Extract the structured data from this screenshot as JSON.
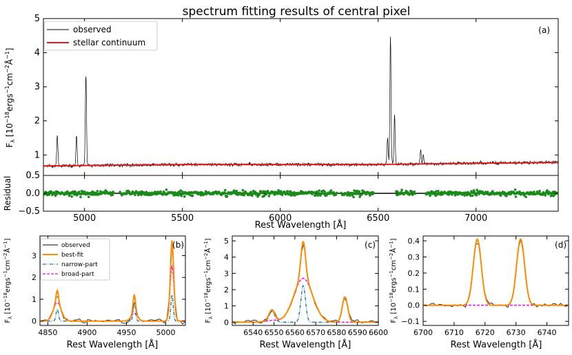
{
  "figure": {
    "title": "spectrum fitting results of central pixel",
    "x_label": "Rest Wavelength [Å]",
    "flux_label": "F",
    "flux_label_sub": "λ",
    "flux_units_a": " [10",
    "flux_units_b": "ergs",
    "flux_units_c": "cm",
    "flux_units_d": "Å",
    "flux_units_e": "]",
    "exp_m18": "−18",
    "exp_m1": "−1",
    "exp_m2": "−2",
    "residual_label": "Residual"
  },
  "colors": {
    "observed": "#000000",
    "continuum": "#e41a1c",
    "residual_points": "#1a8a1a",
    "best_fit": "#ff8c00",
    "narrow": "#1f77b4",
    "broad": "#ff00ff"
  },
  "chart_data": [
    {
      "id": "a",
      "type": "line",
      "panel_label": "(a)",
      "xlim": [
        4790,
        7420
      ],
      "ylim": [
        0.4,
        5.0
      ],
      "x_ticks": [
        5000,
        5500,
        6000,
        6500,
        7000
      ],
      "y_ticks": [
        1,
        2,
        3,
        4,
        5
      ],
      "y_tick_labels": [
        "1",
        "2",
        "3",
        "4",
        "5"
      ],
      "legend": {
        "position": "top-left",
        "entries": [
          "observed",
          "stellar continuum"
        ]
      },
      "continuum": {
        "x": [
          4790,
          5500,
          6000,
          6500,
          7000,
          7420
        ],
        "y": [
          0.68,
          0.72,
          0.72,
          0.72,
          0.76,
          0.78
        ]
      },
      "emission_lines": [
        {
          "x": 4861,
          "peak": 1.55
        },
        {
          "x": 4959,
          "peak": 1.55
        },
        {
          "x": 5007,
          "peak": 3.4
        },
        {
          "x": 6548,
          "peak": 1.5
        },
        {
          "x": 6563,
          "peak": 4.5
        },
        {
          "x": 6584,
          "peak": 2.15
        },
        {
          "x": 6717,
          "peak": 1.15
        },
        {
          "x": 6731,
          "peak": 1.0
        }
      ]
    },
    {
      "id": "residual",
      "type": "scatter",
      "xlim": [
        4790,
        7420
      ],
      "ylim": [
        -0.5,
        0.5
      ],
      "y_ticks": [
        -0.5,
        0.0,
        0.5
      ],
      "y_tick_labels": [
        "−0.5",
        "0.0",
        "0.5"
      ],
      "x_ticks": [
        5000,
        5500,
        6000,
        6500,
        7000
      ],
      "x_tick_labels": [
        "5000",
        "5500",
        "6000",
        "6500",
        "7000"
      ],
      "masked_ranges": [
        [
          5150,
          5180
        ],
        [
          6290,
          6310
        ],
        [
          6480,
          6590
        ],
        [
          6690,
          6740
        ]
      ],
      "scatter_sigma": 0.07
    },
    {
      "id": "b",
      "type": "line",
      "panel_label": "(b)",
      "xlim": [
        4840,
        5025
      ],
      "ylim": [
        -0.2,
        3.9
      ],
      "x_ticks": [
        4850,
        4900,
        4950,
        5000
      ],
      "y_ticks": [
        0,
        1,
        2,
        3
      ],
      "y_tick_labels": [
        "0",
        "1",
        "2",
        "3"
      ],
      "legend": {
        "position": "top-left",
        "entries": [
          "observed",
          "best-fit",
          "narrow-part",
          "broad-part"
        ]
      },
      "lines": [
        {
          "x": 4862,
          "narrow": 0.55,
          "broad": 0.85,
          "sigma_n": 1.5,
          "sigma_b": 5
        },
        {
          "x": 4960,
          "narrow": 0.85,
          "broad": 0.35,
          "sigma_n": 1.5,
          "sigma_b": 4
        },
        {
          "x": 5008,
          "narrow": 1.2,
          "broad": 2.5,
          "sigma_n": 1.5,
          "sigma_b": 2.5
        }
      ]
    },
    {
      "id": "c",
      "type": "line",
      "panel_label": "(c)",
      "xlim": [
        6530,
        6600
      ],
      "ylim": [
        -0.2,
        5.3
      ],
      "x_ticks": [
        6540,
        6550,
        6560,
        6570,
        6580,
        6590,
        6600
      ],
      "y_ticks": [
        0,
        1,
        2,
        3,
        4,
        5
      ],
      "y_tick_labels": [
        "0",
        "1",
        "2",
        "3",
        "4",
        "5"
      ],
      "lines": [
        {
          "x": 6549,
          "narrow": 0.65,
          "broad": 0.1,
          "sigma_n": 1.4,
          "sigma_b": 3
        },
        {
          "x": 6564,
          "narrow": 2.25,
          "broad": 2.7,
          "sigma_n": 1.1,
          "sigma_b": 4.5
        },
        {
          "x": 6584,
          "narrow": 1.55,
          "broad": 0.0,
          "sigma_n": 1.3,
          "sigma_b": 3
        }
      ]
    },
    {
      "id": "d",
      "type": "line",
      "panel_label": "(d)",
      "xlim": [
        6700,
        6747
      ],
      "ylim": [
        -0.125,
        0.43
      ],
      "x_ticks": [
        6700,
        6710,
        6720,
        6730,
        6740
      ],
      "y_ticks": [
        -0.1,
        0.0,
        0.1,
        0.2,
        0.3,
        0.4
      ],
      "y_tick_labels": [
        "−0.1",
        "0.0",
        "0.1",
        "0.2",
        "0.3",
        "0.4"
      ],
      "lines": [
        {
          "x": 6717.5,
          "narrow": 0.41,
          "broad": 0.0,
          "sigma_n": 1.3,
          "sigma_b": 3
        },
        {
          "x": 6731.5,
          "narrow": 0.41,
          "broad": 0.0,
          "sigma_n": 1.3,
          "sigma_b": 3
        }
      ]
    }
  ]
}
